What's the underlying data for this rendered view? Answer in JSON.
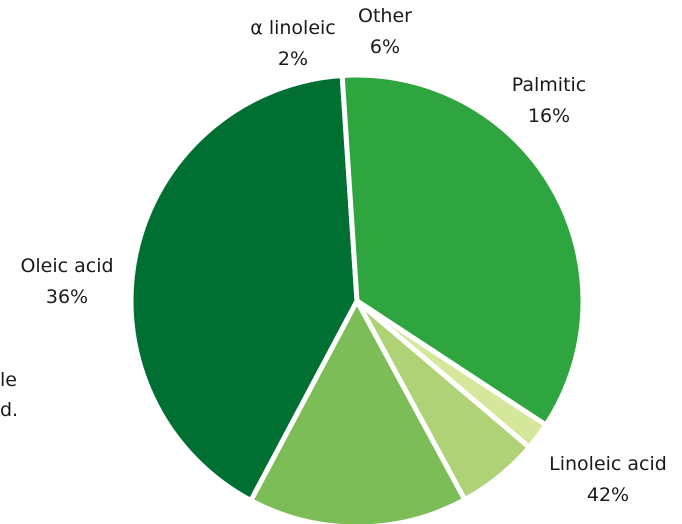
{
  "chart_data": {
    "type": "pie",
    "title": "",
    "slices": [
      {
        "label": "Linoleic acid",
        "value": 42,
        "value_label": "42%",
        "color": "#006f32"
      },
      {
        "label": "Oleic acid",
        "value": 36,
        "value_label": "36%",
        "color": "#2ea53e"
      },
      {
        "label": "α linoleic",
        "value": 2,
        "value_label": "2%",
        "color": "#d5e79a"
      },
      {
        "label": "Other",
        "value": 6,
        "value_label": "6%",
        "color": "#b0d276"
      },
      {
        "label": "Palmitic",
        "value": 16,
        "value_label": "16%",
        "color": "#7dbd57"
      }
    ],
    "start_angle_deg": 118,
    "direction": "clockwise",
    "separator_color": "#ffffff"
  },
  "side_text": {
    "line1": "le",
    "line2": "d."
  }
}
